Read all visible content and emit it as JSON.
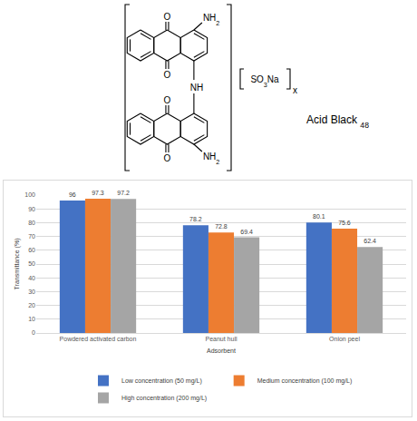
{
  "chart_data": {
    "type": "bar",
    "xlabel": "Adsorbent",
    "ylabel": "Transmittance (%)",
    "categories": [
      "Powdered activated carbon",
      "Peanut hull",
      "Onion peel"
    ],
    "series": [
      {
        "name": "Low concentration (50 mg/L)",
        "color": "#4472c4",
        "values": [
          96,
          78.2,
          80.1
        ]
      },
      {
        "name": "Medium concentration (100 mg/L)",
        "color": "#ed7d31",
        "values": [
          97.3,
          72.8,
          75.6
        ]
      },
      {
        "name": "High concentration (200 mg/L)",
        "color": "#a5a5a5",
        "values": [
          97.2,
          69.4,
          62.4
        ]
      }
    ],
    "ylim": [
      0,
      100
    ],
    "yticks": [
      0,
      10,
      20,
      30,
      40,
      50,
      60,
      70,
      80,
      90,
      100
    ],
    "grid": true,
    "legend": "bottom",
    "data_labels": true
  },
  "structure": {
    "name": "Acid Black 48",
    "upper_unit": {
      "carbonyl_top": "O",
      "carbonyl_bottom": "O",
      "top_group": "NH2"
    },
    "bridge": "NH",
    "lower_unit": {
      "carbonyl_top": "O",
      "carbonyl_bottom": "O",
      "bottom_group": "NH2"
    },
    "counter_ion": "SO3Na",
    "repeat": "x"
  }
}
